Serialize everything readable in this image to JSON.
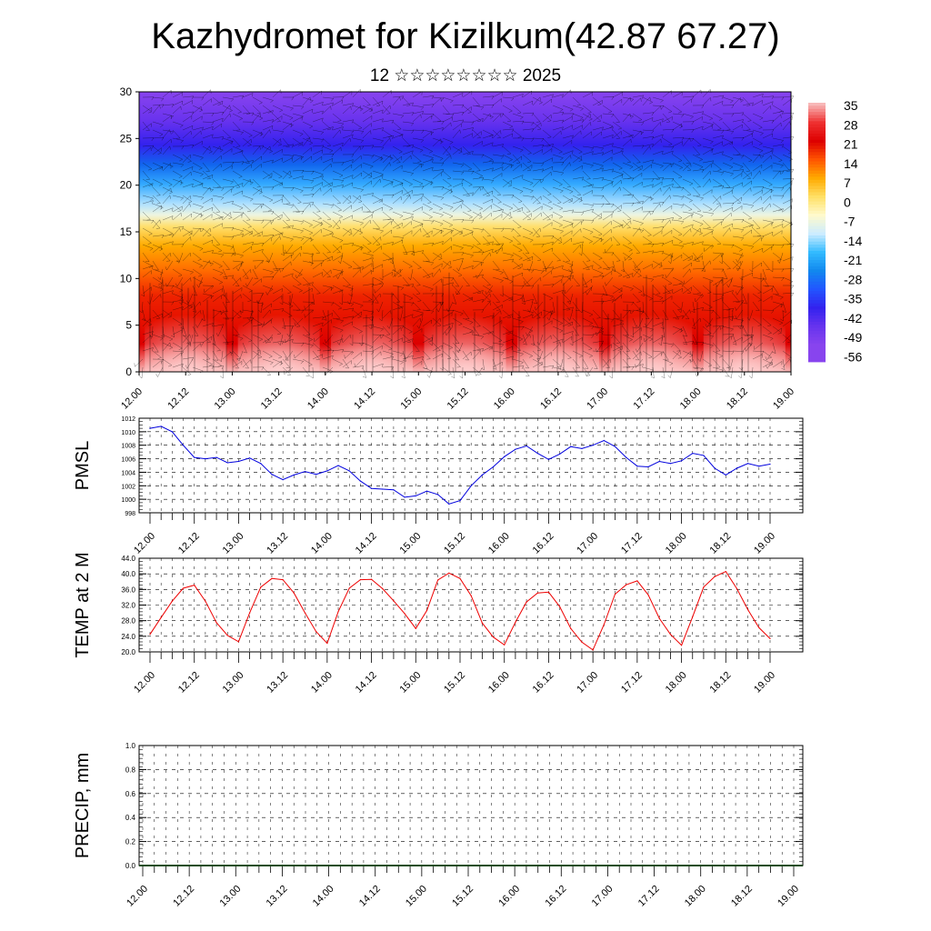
{
  "header": {
    "title": "Kazhydromet for Kizilkum(42.87 67.27)",
    "subtitle": "12 ☆☆☆☆☆☆☆☆ 2025"
  },
  "chart_data": [
    {
      "type": "heatmap",
      "name": "temperature-wind-cross-section",
      "ylim": [
        0,
        30
      ],
      "y_ticks": [
        "0",
        "5",
        "10",
        "15",
        "20",
        "25",
        "30"
      ],
      "x_ticks": [
        "12.00",
        "12.12",
        "13.00",
        "13.12",
        "14.00",
        "14.12",
        "15.00",
        "15.12",
        "16.00",
        "16.12",
        "17.00",
        "17.12",
        "18.00",
        "18.12",
        "19.00"
      ],
      "colorbar": {
        "labels": [
          "35",
          "28",
          "21",
          "14",
          "7",
          "0",
          "-7",
          "-14",
          "-21",
          "-28",
          "-35",
          "-42",
          "-49",
          "-56"
        ],
        "colors": [
          "#f8b8b8",
          "#ee3030",
          "#dd0000",
          "#ff5500",
          "#ffaa00",
          "#ffe066",
          "#fffacc",
          "#ccecff",
          "#33bbff",
          "#1188ee",
          "#2255ff",
          "#3322ee",
          "#6633ee",
          "#8844ee"
        ]
      },
      "overlay": "wind barbs"
    },
    {
      "type": "line",
      "name": "pmsl",
      "ylabel": "PMSL",
      "ylim": [
        998,
        1012
      ],
      "y_ticks": [
        "998",
        "1000",
        "1002",
        "1004",
        "1006",
        "1008",
        "1010",
        "1012"
      ],
      "x_ticks": [
        "12.00",
        "12.12",
        "13.00",
        "13.12",
        "14.00",
        "14.12",
        "15.00",
        "15.12",
        "16.00",
        "16.12",
        "17.00",
        "17.12",
        "18.00",
        "18.12",
        "19.00"
      ],
      "color": "#0000dd",
      "values": [
        1010.5,
        1010.8,
        1010.0,
        1008.0,
        1006.2,
        1006.0,
        1006.2,
        1005.4,
        1005.6,
        1006.1,
        1005.3,
        1003.7,
        1002.9,
        1003.6,
        1004.1,
        1003.7,
        1004.2,
        1005.0,
        1004.2,
        1002.7,
        1001.6,
        1001.5,
        1001.4,
        1000.3,
        1000.5,
        1001.2,
        1000.7,
        999.3,
        999.8,
        1002.0,
        1003.6,
        1004.8,
        1006.3,
        1007.4,
        1007.9,
        1006.8,
        1005.9,
        1006.7,
        1007.8,
        1007.5,
        1008.0,
        1008.7,
        1007.8,
        1006.2,
        1004.9,
        1004.8,
        1005.6,
        1005.3,
        1005.7,
        1006.8,
        1006.5,
        1004.6,
        1003.6,
        1004.6,
        1005.3,
        1004.9,
        1005.2
      ]
    },
    {
      "type": "line",
      "name": "temp-2m",
      "ylabel": "TEMP at 2 M",
      "ylim": [
        20,
        44
      ],
      "y_ticks": [
        "20.0",
        "24.0",
        "28.0",
        "32.0",
        "36.0",
        "40.0",
        "44.0"
      ],
      "x_ticks": [
        "12.00",
        "12.12",
        "13.00",
        "13.12",
        "14.00",
        "14.12",
        "15.00",
        "15.12",
        "16.00",
        "16.12",
        "17.00",
        "17.12",
        "18.00",
        "18.12",
        "19.00"
      ],
      "color": "#ee0000",
      "values": [
        24.5,
        28.8,
        33.0,
        36.3,
        37.1,
        33.0,
        27.5,
        24.2,
        22.6,
        30.0,
        36.6,
        38.8,
        38.5,
        35.1,
        30.0,
        25.2,
        22.2,
        30.3,
        36.3,
        38.5,
        38.6,
        36.2,
        33.1,
        29.8,
        26.0,
        30.6,
        38.4,
        40.2,
        38.8,
        34.4,
        27.4,
        23.8,
        21.8,
        27.6,
        32.8,
        35.1,
        35.3,
        31.6,
        26.0,
        22.5,
        20.5,
        27.0,
        34.8,
        37.2,
        38.2,
        34.6,
        28.6,
        24.5,
        21.7,
        29.0,
        36.6,
        39.3,
        40.6,
        36.2,
        30.8,
        26.2,
        23.4
      ]
    },
    {
      "type": "bar",
      "name": "precip",
      "ylabel": "PRECIP, mm",
      "ylim": [
        0,
        1
      ],
      "y_ticks": [
        "0.0",
        "0.2",
        "0.4",
        "0.6",
        "0.8",
        "1.0"
      ],
      "x_ticks": [
        "12.00",
        "12.12",
        "13.00",
        "13.12",
        "14.00",
        "14.12",
        "15.00",
        "15.12",
        "16.00",
        "16.12",
        "17.00",
        "17.12",
        "18.00",
        "18.12",
        "19.00"
      ],
      "values": [
        0,
        0,
        0,
        0,
        0,
        0,
        0,
        0,
        0,
        0,
        0,
        0,
        0,
        0,
        0,
        0,
        0,
        0,
        0,
        0,
        0,
        0,
        0,
        0,
        0,
        0,
        0,
        0,
        0,
        0,
        0,
        0,
        0,
        0,
        0,
        0,
        0,
        0,
        0,
        0,
        0,
        0,
        0,
        0,
        0,
        0,
        0,
        0,
        0,
        0,
        0,
        0,
        0,
        0,
        0,
        0,
        0
      ]
    }
  ]
}
